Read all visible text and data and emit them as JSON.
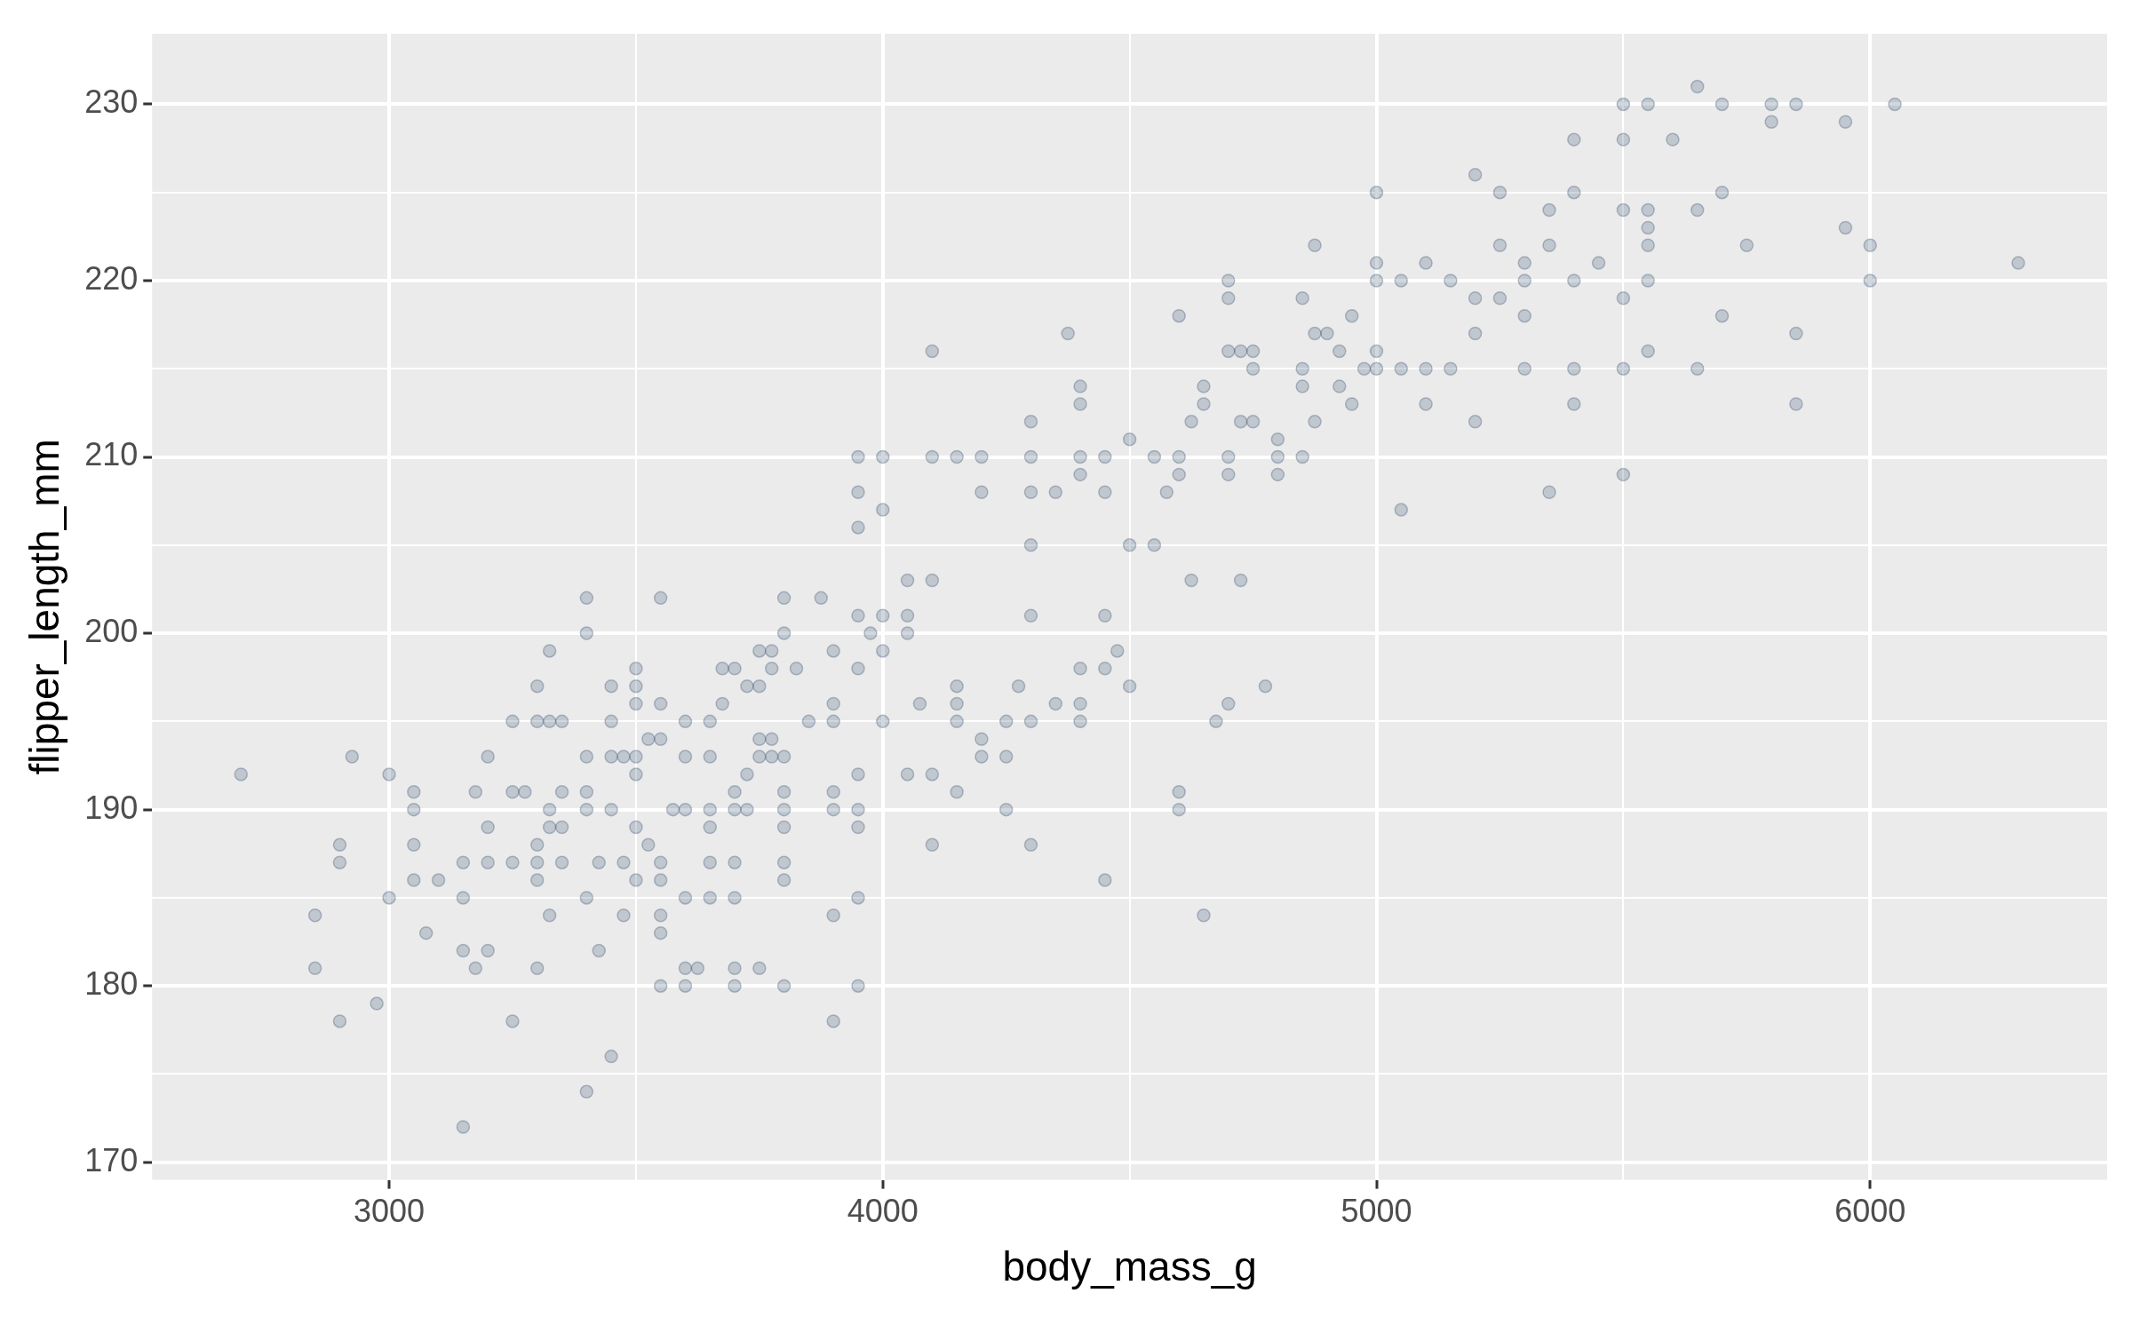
{
  "chart_data": {
    "type": "scatter",
    "xlabel": "body_mass_g",
    "ylabel": "flipper_length_mm",
    "color": "#2f4a6b",
    "marker": "circle",
    "grid": true,
    "xlim": [
      2520,
      6480
    ],
    "ylim": [
      169,
      234
    ],
    "xticks": [
      3000,
      {
        "value": 3500,
        "label": null
      },
      4000,
      {
        "value": 4500,
        "label": null
      },
      5000,
      {
        "value": 5500,
        "label": null
      },
      6000
    ],
    "yticks": [
      170,
      {
        "value": 175,
        "label": null
      },
      180,
      {
        "value": 185,
        "label": null
      },
      190,
      {
        "value": 195,
        "label": null
      },
      200,
      {
        "value": 205,
        "label": null
      },
      210,
      {
        "value": 215,
        "label": null
      },
      220,
      {
        "value": 225,
        "label": null
      },
      230
    ],
    "x": [
      2700,
      2850,
      2850,
      2900,
      2900,
      2900,
      2925,
      2975,
      3000,
      3000,
      3050,
      3050,
      3050,
      3050,
      3075,
      3100,
      3150,
      3150,
      3150,
      3150,
      3175,
      3175,
      3200,
      3200,
      3200,
      3200,
      3250,
      3250,
      3250,
      3250,
      3275,
      3300,
      3300,
      3300,
      3300,
      3300,
      3300,
      3325,
      3325,
      3325,
      3325,
      3325,
      3350,
      3350,
      3350,
      3350,
      3400,
      3400,
      3400,
      3400,
      3400,
      3400,
      3400,
      3425,
      3425,
      3450,
      3450,
      3450,
      3450,
      3450,
      3475,
      3475,
      3475,
      3500,
      3500,
      3500,
      3500,
      3500,
      3500,
      3500,
      3525,
      3525,
      3550,
      3550,
      3550,
      3550,
      3550,
      3550,
      3550,
      3550,
      3575,
      3600,
      3600,
      3600,
      3600,
      3600,
      3600,
      3625,
      3650,
      3650,
      3650,
      3650,
      3650,
      3650,
      3675,
      3675,
      3700,
      3700,
      3700,
      3700,
      3700,
      3700,
      3700,
      3725,
      3725,
      3725,
      3750,
      3750,
      3750,
      3750,
      3750,
      3775,
      3775,
      3775,
      3775,
      3800,
      3800,
      3800,
      3800,
      3800,
      3800,
      3800,
      3800,
      3800,
      3825,
      3850,
      3875,
      3900,
      3900,
      3900,
      3900,
      3900,
      3900,
      3900,
      3950,
      3950,
      3950,
      3950,
      3950,
      3950,
      3950,
      3950,
      3950,
      3950,
      3975,
      4000,
      4000,
      4000,
      4000,
      4000,
      4050,
      4050,
      4050,
      4050,
      4075,
      4100,
      4100,
      4100,
      4100,
      4100,
      4150,
      4150,
      4150,
      4150,
      4150,
      4200,
      4200,
      4200,
      4200,
      4250,
      4250,
      4250,
      4275,
      4300,
      4300,
      4300,
      4300,
      4300,
      4300,
      4300,
      4350,
      4350,
      4375,
      4400,
      4400,
      4400,
      4400,
      4400,
      4400,
      4400,
      4450,
      4450,
      4450,
      4450,
      4450,
      4475,
      4500,
      4500,
      4500,
      4550,
      4550,
      4575,
      4600,
      4600,
      4600,
      4600,
      4600,
      4625,
      4625,
      4650,
      4650,
      4650,
      4675,
      4700,
      4700,
      4700,
      4700,
      4700,
      4700,
      4725,
      4725,
      4725,
      4750,
      4750,
      4750,
      4775,
      4800,
      4800,
      4800,
      4850,
      4850,
      4850,
      4850,
      4875,
      4875,
      4875,
      4900,
      4925,
      4925,
      4950,
      4950,
      4975,
      5000,
      5000,
      5000,
      5000,
      5000,
      5050,
      5050,
      5050,
      5100,
      5100,
      5100,
      5150,
      5150,
      5200,
      5200,
      5200,
      5200,
      5250,
      5250,
      5250,
      5300,
      5300,
      5300,
      5300,
      5350,
      5350,
      5350,
      5400,
      5400,
      5400,
      5400,
      5400,
      5450,
      5500,
      5500,
      5500,
      5500,
      5500,
      5500,
      5550,
      5550,
      5550,
      5550,
      5550,
      5550,
      5600,
      5650,
      5650,
      5650,
      5700,
      5700,
      5700,
      5750,
      5800,
      5800,
      5850,
      5850,
      5850,
      5950,
      5950,
      6000,
      6000,
      6050,
      6300
    ],
    "values": [
      192,
      184,
      181,
      188,
      187,
      178,
      193,
      179,
      192,
      185,
      191,
      190,
      188,
      186,
      183,
      186,
      187,
      185,
      182,
      172,
      191,
      181,
      193,
      189,
      187,
      182,
      195,
      191,
      187,
      178,
      191,
      197,
      195,
      188,
      187,
      186,
      181,
      199,
      195,
      190,
      189,
      184,
      195,
      191,
      189,
      187,
      202,
      200,
      193,
      191,
      190,
      185,
      174,
      187,
      182,
      197,
      195,
      193,
      190,
      176,
      193,
      187,
      184,
      198,
      197,
      196,
      193,
      192,
      189,
      186,
      194,
      188,
      202,
      196,
      194,
      187,
      186,
      184,
      183,
      180,
      190,
      195,
      193,
      190,
      185,
      181,
      180,
      181,
      195,
      193,
      190,
      189,
      187,
      185,
      198,
      196,
      198,
      191,
      190,
      187,
      185,
      181,
      180,
      197,
      192,
      190,
      199,
      197,
      194,
      193,
      181,
      199,
      198,
      194,
      193,
      202,
      200,
      193,
      191,
      190,
      189,
      187,
      186,
      180,
      198,
      195,
      202,
      199,
      196,
      195,
      191,
      190,
      184,
      178,
      210,
      208,
      206,
      201,
      198,
      192,
      190,
      189,
      185,
      180,
      200,
      210,
      207,
      201,
      199,
      195,
      203,
      201,
      200,
      192,
      196,
      216,
      210,
      203,
      192,
      188,
      210,
      197,
      196,
      195,
      191,
      210,
      208,
      194,
      193,
      195,
      193,
      190,
      197,
      212,
      210,
      208,
      205,
      201,
      195,
      188,
      208,
      196,
      217,
      214,
      213,
      210,
      209,
      198,
      196,
      195,
      210,
      208,
      201,
      198,
      186,
      199,
      211,
      205,
      197,
      210,
      205,
      208,
      218,
      210,
      209,
      191,
      190,
      212,
      203,
      214,
      213,
      184,
      195,
      220,
      219,
      216,
      210,
      209,
      196,
      216,
      212,
      203,
      216,
      215,
      212,
      197,
      211,
      210,
      209,
      219,
      215,
      214,
      210,
      222,
      217,
      212,
      217,
      216,
      214,
      218,
      213,
      215,
      225,
      221,
      220,
      216,
      215,
      220,
      215,
      207,
      221,
      215,
      213,
      220,
      215,
      226,
      219,
      217,
      212,
      225,
      222,
      219,
      221,
      220,
      218,
      215,
      224,
      222,
      208,
      228,
      225,
      220,
      215,
      213,
      221,
      230,
      228,
      224,
      219,
      215,
      209,
      230,
      224,
      223,
      222,
      220,
      216,
      228,
      231,
      224,
      215,
      230,
      225,
      218,
      222,
      230,
      229,
      230,
      217,
      213,
      229,
      223,
      222,
      220,
      230,
      221
    ]
  }
}
